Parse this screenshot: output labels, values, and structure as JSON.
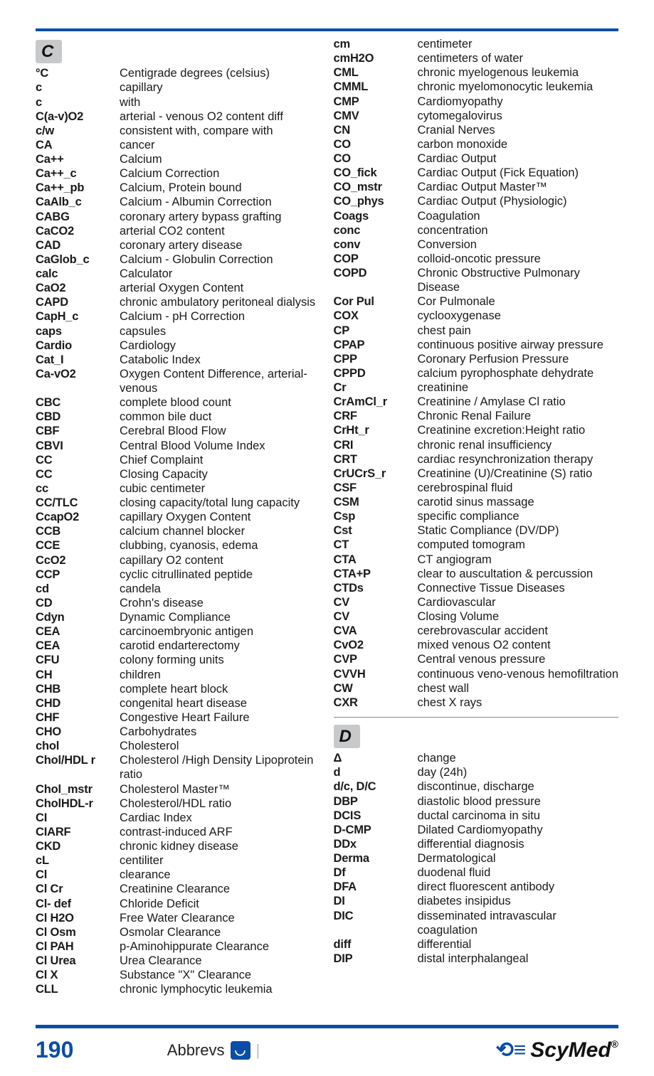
{
  "colors": {
    "accent": "#0a4da8",
    "header_bg": "#c8c9cb",
    "text": "#1a1a1a"
  },
  "typography": {
    "body_fontsize_pt": 12,
    "header_fontsize_pt": 18,
    "body_font": "Arial"
  },
  "page": {
    "number": "190",
    "footer_label": "Abbrevs",
    "brand": "ScyMed",
    "brand_mark": "⟲≡"
  },
  "sections": {
    "C": {
      "label": "C",
      "entries": [
        {
          "abbr": "°C",
          "def": "Centigrade degrees (celsius)"
        },
        {
          "abbr": "c",
          "def": "capillary"
        },
        {
          "abbr": "c",
          "def": "with"
        },
        {
          "abbr": "C(a-v)O2",
          "def": "arterial - venous O2 content diff"
        },
        {
          "abbr": "c/w",
          "def": "consistent with, compare with"
        },
        {
          "abbr": "CA",
          "def": "cancer"
        },
        {
          "abbr": "Ca++",
          "def": "Calcium"
        },
        {
          "abbr": "Ca++_c",
          "def": "Calcium Correction"
        },
        {
          "abbr": "Ca++_pb",
          "def": "Calcium, Protein bound"
        },
        {
          "abbr": "CaAlb_c",
          "def": "Calcium - Albumin Correction"
        },
        {
          "abbr": "CABG",
          "def": "coronary artery bypass grafting"
        },
        {
          "abbr": "CaCO2",
          "def": "arterial CO2 content"
        },
        {
          "abbr": "CAD",
          "def": "coronary artery disease"
        },
        {
          "abbr": "CaGlob_c",
          "def": "Calcium - Globulin Correction"
        },
        {
          "abbr": "calc",
          "def": "Calculator"
        },
        {
          "abbr": "CaO2",
          "def": "arterial Oxygen Content"
        },
        {
          "abbr": "CAPD",
          "def": "chronic ambulatory peritoneal dialysis"
        },
        {
          "abbr": "CapH_c",
          "def": "Calcium - pH Correction"
        },
        {
          "abbr": "caps",
          "def": "capsules"
        },
        {
          "abbr": "Cardio",
          "def": "Cardiology"
        },
        {
          "abbr": "Cat_I",
          "def": "Catabolic Index"
        },
        {
          "abbr": "Ca-vO2",
          "def": "Oxygen Content Difference, arterial-venous"
        },
        {
          "abbr": "CBC",
          "def": "complete blood count"
        },
        {
          "abbr": "CBD",
          "def": "common bile duct"
        },
        {
          "abbr": "CBF",
          "def": "Cerebral Blood Flow"
        },
        {
          "abbr": "CBVI",
          "def": "Central Blood Volume Index"
        },
        {
          "abbr": "CC",
          "def": "Chief Complaint"
        },
        {
          "abbr": "CC",
          "def": "Closing Capacity"
        },
        {
          "abbr": "cc",
          "def": "cubic centimeter"
        },
        {
          "abbr": "CC/TLC",
          "def": "closing capacity/total lung capacity"
        },
        {
          "abbr": "CcapO2",
          "def": "capillary Oxygen Content"
        },
        {
          "abbr": "CCB",
          "def": "calcium channel blocker"
        },
        {
          "abbr": "CCE",
          "def": "clubbing, cyanosis, edema"
        },
        {
          "abbr": "CcO2",
          "def": "capillary O2 content"
        },
        {
          "abbr": "CCP",
          "def": "cyclic citrullinated peptide"
        },
        {
          "abbr": "cd",
          "def": "candela"
        },
        {
          "abbr": "CD",
          "def": "Crohn's disease"
        },
        {
          "abbr": "Cdyn",
          "def": "Dynamic Compliance"
        },
        {
          "abbr": "CEA",
          "def": "carcinoembryonic antigen"
        },
        {
          "abbr": "CEA",
          "def": "carotid endarterectomy"
        },
        {
          "abbr": "CFU",
          "def": "colony forming units"
        },
        {
          "abbr": "CH",
          "def": "children"
        },
        {
          "abbr": "CHB",
          "def": "complete heart block"
        },
        {
          "abbr": "CHD",
          "def": "congenital heart disease"
        },
        {
          "abbr": "CHF",
          "def": "Congestive Heart Failure"
        },
        {
          "abbr": "CHO",
          "def": "Carbohydrates"
        },
        {
          "abbr": "chol",
          "def": "Cholesterol"
        },
        {
          "abbr": "Chol/HDL r",
          "def": "Cholesterol /High Density Lipoprotein ratio"
        },
        {
          "abbr": "Chol_mstr",
          "def": "Cholesterol Master™"
        },
        {
          "abbr": "CholHDL-r",
          "def": "Cholesterol/HDL ratio"
        },
        {
          "abbr": "CI",
          "def": "Cardiac Index"
        },
        {
          "abbr": "CIARF",
          "def": "contrast-induced ARF"
        },
        {
          "abbr": "CKD",
          "def": "chronic kidney disease"
        },
        {
          "abbr": "cL",
          "def": "centiliter"
        },
        {
          "abbr": "Cl",
          "def": "clearance"
        },
        {
          "abbr": "Cl Cr",
          "def": "Creatinine Clearance"
        },
        {
          "abbr": "Cl- def",
          "def": "Chloride Deficit"
        },
        {
          "abbr": "Cl H2O",
          "def": "Free Water Clearance"
        },
        {
          "abbr": "Cl Osm",
          "def": "Osmolar Clearance"
        },
        {
          "abbr": "Cl PAH",
          "def": " p-Aminohippurate Clearance"
        },
        {
          "abbr": "Cl Urea",
          "def": "Urea Clearance"
        },
        {
          "abbr": "Cl X",
          "def": "Substance \"X\" Clearance"
        },
        {
          "abbr": "CLL",
          "def": "chronic lymphocytic leukemia"
        }
      ]
    },
    "C2": {
      "entries": [
        {
          "abbr": "cm",
          "def": "centimeter"
        },
        {
          "abbr": "cmH2O",
          "def": "centimeters of water"
        },
        {
          "abbr": "CML",
          "def": "chronic myelogenous leukemia"
        },
        {
          "abbr": "CMML",
          "def": "chronic myelomonocytic leukemia"
        },
        {
          "abbr": "CMP",
          "def": "Cardiomyopathy"
        },
        {
          "abbr": "CMV",
          "def": "cytomegalovirus"
        },
        {
          "abbr": "CN",
          "def": "Cranial Nerves"
        },
        {
          "abbr": "CO",
          "def": "carbon monoxide"
        },
        {
          "abbr": "CO",
          "def": "Cardiac Output"
        },
        {
          "abbr": "CO_fick",
          "def": "Cardiac Output (Fick Equation)"
        },
        {
          "abbr": "CO_mstr",
          "def": "Cardiac Output Master™"
        },
        {
          "abbr": "CO_phys",
          "def": "Cardiac Output (Physiologic)"
        },
        {
          "abbr": "Coags",
          "def": "Coagulation"
        },
        {
          "abbr": "conc",
          "def": "concentration"
        },
        {
          "abbr": "conv",
          "def": "Conversion"
        },
        {
          "abbr": "COP",
          "def": "colloid-oncotic pressure"
        },
        {
          "abbr": "COPD",
          "def": "Chronic Obstructive Pulmonary Disease"
        },
        {
          "abbr": "Cor Pul",
          "def": "Cor Pulmonale"
        },
        {
          "abbr": "COX",
          "def": "cyclooxygenase"
        },
        {
          "abbr": "CP",
          "def": "chest pain"
        },
        {
          "abbr": "CPAP",
          "def": "continuous positive airway pressure"
        },
        {
          "abbr": "CPP",
          "def": "Coronary Perfusion Pressure"
        },
        {
          "abbr": "CPPD",
          "def": "calcium pyrophosphate dehydrate"
        },
        {
          "abbr": "Cr",
          "def": "creatinine"
        },
        {
          "abbr": "CrAmCl_r",
          "def": "Creatinine / Amylase Cl ratio"
        },
        {
          "abbr": "CRF",
          "def": "Chronic Renal Failure"
        },
        {
          "abbr": "CrHt_r",
          "def": "Creatinine excretion:Height ratio"
        },
        {
          "abbr": "CRI",
          "def": "chronic renal insufficiency"
        },
        {
          "abbr": "CRT",
          "def": "cardiac resynchronization therapy"
        },
        {
          "abbr": "CrUCrS_r",
          "def": "Creatinine (U)/Creatinine (S) ratio"
        },
        {
          "abbr": "CSF",
          "def": "cerebrospinal fluid"
        },
        {
          "abbr": "CSM",
          "def": "carotid sinus massage"
        },
        {
          "abbr": "Csp",
          "def": "specific compliance"
        },
        {
          "abbr": "Cst",
          "def": "Static Compliance (DV/DP)"
        },
        {
          "abbr": "CT",
          "def": "computed tomogram"
        },
        {
          "abbr": "CTA",
          "def": "CT angiogram"
        },
        {
          "abbr": "CTA+P",
          "def": "clear to auscultation & percussion"
        },
        {
          "abbr": "CTDs",
          "def": "Connective Tissue Diseases"
        },
        {
          "abbr": "CV",
          "def": "Cardiovascular"
        },
        {
          "abbr": "CV",
          "def": "Closing Volume"
        },
        {
          "abbr": "CVA",
          "def": "cerebrovascular accident"
        },
        {
          "abbr": "CvO2",
          "def": "mixed venous O2 content"
        },
        {
          "abbr": "CVP",
          "def": "Central venous pressure"
        },
        {
          "abbr": "CVVH",
          "def": "continuous veno-venous hemofiltration"
        },
        {
          "abbr": "CW",
          "def": "chest wall"
        },
        {
          "abbr": "CXR",
          "def": "chest X rays"
        }
      ]
    },
    "D": {
      "label": "D",
      "entries": [
        {
          "abbr": "Δ",
          "def": "change"
        },
        {
          "abbr": "d",
          "def": "day (24h)"
        },
        {
          "abbr": "d/c, D/C",
          "def": "discontinue, discharge"
        },
        {
          "abbr": "DBP",
          "def": "diastolic blood pressure"
        },
        {
          "abbr": "DCIS",
          "def": "ductal carcinoma in situ"
        },
        {
          "abbr": "D-CMP",
          "def": "Dilated Cardiomyopathy"
        },
        {
          "abbr": "DDx",
          "def": "differential diagnosis"
        },
        {
          "abbr": "Derma",
          "def": "Dermatological"
        },
        {
          "abbr": "Df",
          "def": "duodenal fluid"
        },
        {
          "abbr": "DFA",
          "def": "direct fluorescent antibody"
        },
        {
          "abbr": "DI",
          "def": "diabetes insipidus"
        },
        {
          "abbr": "DIC",
          "def": "disseminated intravascular coagulation"
        },
        {
          "abbr": "diff",
          "def": "differential"
        },
        {
          "abbr": "DIP",
          "def": "distal interphalangeal"
        }
      ]
    }
  }
}
